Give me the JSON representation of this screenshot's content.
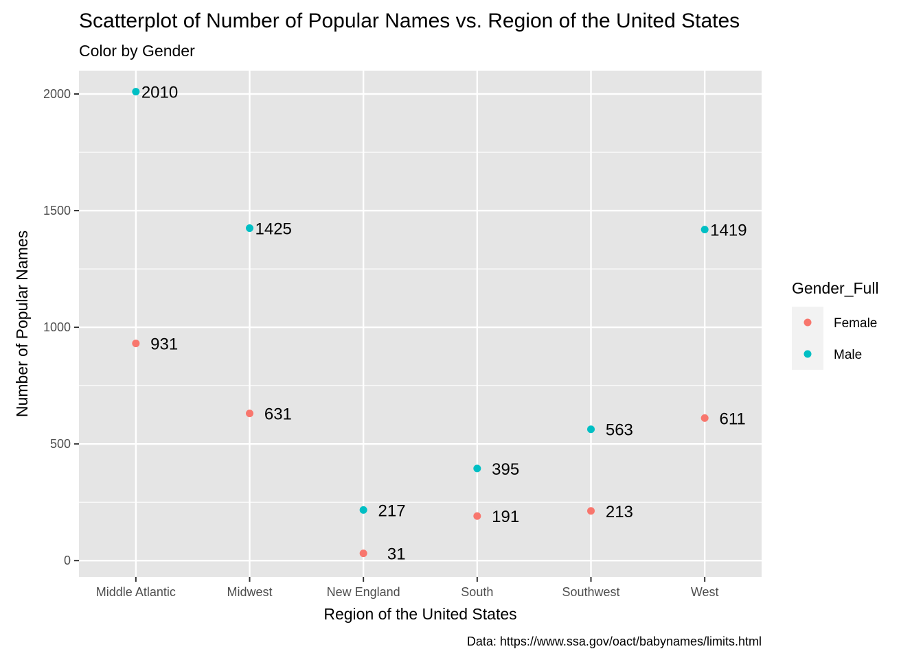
{
  "chart_data": {
    "type": "scatter",
    "title": "Scatterplot of Number of Popular Names vs. Region of the United States",
    "subtitle": "Color by Gender",
    "xlabel": "Region of the United States",
    "ylabel": "Number of Popular Names",
    "caption": "Data: https://www.ssa.gov/oact/babynames/limits.html",
    "categories": [
      "Middle Atlantic",
      "Midwest",
      "New England",
      "South",
      "Southwest",
      "West"
    ],
    "y_ticks": [
      0,
      500,
      1000,
      1500,
      2000
    ],
    "ylim": [
      -70,
      2100
    ],
    "grid": true,
    "legend": {
      "title": "Gender_Full",
      "position": "right",
      "entries": [
        {
          "label": "Female",
          "color": "#F8766D"
        },
        {
          "label": "Male",
          "color": "#00BFC4"
        }
      ]
    },
    "series": [
      {
        "name": "Female",
        "color": "#F8766D",
        "values": [
          931,
          631,
          31,
          191,
          213,
          611
        ]
      },
      {
        "name": "Male",
        "color": "#00BFC4",
        "values": [
          2010,
          1425,
          217,
          395,
          563,
          1419
        ]
      }
    ],
    "panel_background": "#E5E5E5",
    "grid_color": "#FFFFFF"
  }
}
